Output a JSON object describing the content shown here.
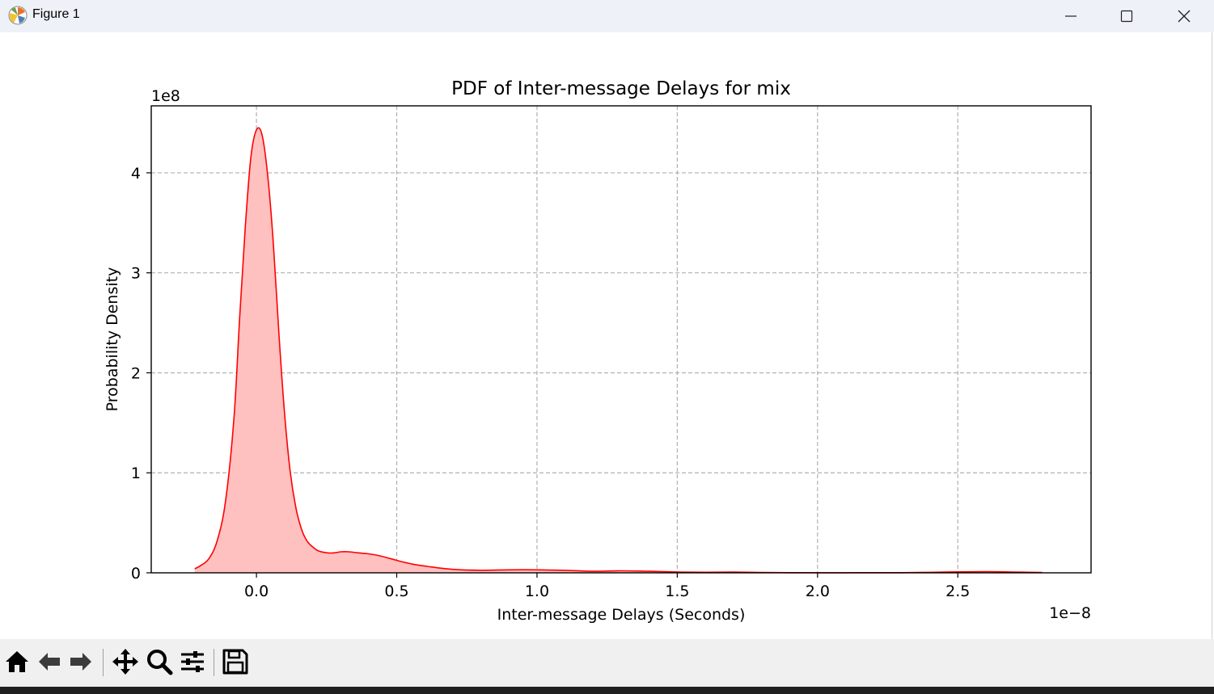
{
  "window": {
    "title": "Figure 1",
    "icons": {
      "app": "matplotlib-icon",
      "minimize": "minimize-icon",
      "maximize": "maximize-icon",
      "close": "close-icon"
    }
  },
  "toolbar": {
    "tools": [
      "home-icon",
      "back-arrow-icon",
      "forward-arrow-icon",
      "pan-icon",
      "zoom-icon",
      "configure-subplots-icon",
      "save-icon"
    ]
  },
  "chart_data": {
    "type": "area",
    "title": "PDF of Inter-message Delays for mix",
    "xlabel": "Inter-message Delays (Seconds)",
    "ylabel": "Probability Density",
    "x_offset_text": "1e−8",
    "y_offset_text": "1e8",
    "xlim": [
      -0.375,
      2.975
    ],
    "ylim": [
      0,
      4.67
    ],
    "xticks": [
      0.0,
      0.5,
      1.0,
      1.5,
      2.0,
      2.5
    ],
    "xtick_labels": [
      "0.0",
      "0.5",
      "1.0",
      "1.5",
      "2.0",
      "2.5"
    ],
    "yticks": [
      0,
      1,
      2,
      3,
      4
    ],
    "ytick_labels": [
      "0",
      "1",
      "2",
      "3",
      "4"
    ],
    "grid": true,
    "line_color": "#ff0000",
    "fill_color": "#ffc0c0",
    "series": [
      {
        "x": [
          -0.22,
          -0.2,
          -0.17,
          -0.14,
          -0.11,
          -0.08,
          -0.06,
          -0.04,
          -0.02,
          0.0,
          0.02,
          0.04,
          0.06,
          0.08,
          0.1,
          0.12,
          0.14,
          0.16,
          0.18,
          0.2,
          0.22,
          0.25,
          0.28,
          0.3,
          0.33,
          0.36,
          0.4,
          0.44,
          0.48,
          0.52,
          0.57,
          0.62,
          0.7,
          0.8,
          0.9,
          1.0,
          1.1,
          1.2,
          1.3,
          1.4,
          1.5,
          1.6,
          1.7,
          1.8,
          1.9,
          2.0,
          2.1,
          2.2,
          2.3,
          2.4,
          2.5,
          2.6,
          2.7,
          2.8
        ],
        "y": [
          0.04,
          0.07,
          0.14,
          0.32,
          0.72,
          1.55,
          2.55,
          3.45,
          4.15,
          4.43,
          4.38,
          3.98,
          3.3,
          2.4,
          1.6,
          1.02,
          0.66,
          0.44,
          0.32,
          0.26,
          0.22,
          0.2,
          0.2,
          0.21,
          0.21,
          0.2,
          0.19,
          0.17,
          0.14,
          0.11,
          0.08,
          0.06,
          0.035,
          0.025,
          0.03,
          0.03,
          0.025,
          0.015,
          0.02,
          0.015,
          0.008,
          0.006,
          0.008,
          0.004,
          0.002,
          0.001,
          0.001,
          0.002,
          0.002,
          0.005,
          0.01,
          0.012,
          0.008,
          0.004
        ]
      }
    ]
  }
}
